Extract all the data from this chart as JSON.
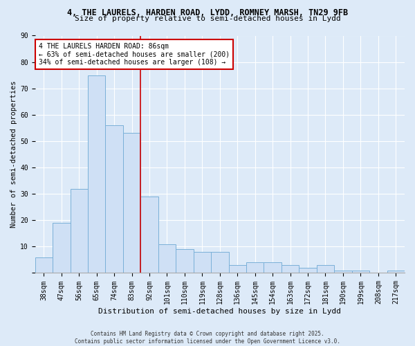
{
  "title_line1": "4, THE LAURELS, HARDEN ROAD, LYDD, ROMNEY MARSH, TN29 9FB",
  "title_line2": "Size of property relative to semi-detached houses in Lydd",
  "xlabel": "Distribution of semi-detached houses by size in Lydd",
  "ylabel": "Number of semi-detached properties",
  "categories": [
    "38sqm",
    "47sqm",
    "56sqm",
    "65sqm",
    "74sqm",
    "83sqm",
    "92sqm",
    "101sqm",
    "110sqm",
    "119sqm",
    "128sqm",
    "136sqm",
    "145sqm",
    "154sqm",
    "163sqm",
    "172sqm",
    "181sqm",
    "190sqm",
    "199sqm",
    "208sqm",
    "217sqm"
  ],
  "values": [
    6,
    19,
    32,
    75,
    56,
    53,
    29,
    11,
    9,
    8,
    8,
    3,
    4,
    4,
    3,
    2,
    3,
    1,
    1,
    0,
    1
  ],
  "bar_color": "#cfe0f5",
  "bar_edge_color": "#7ab0d8",
  "vline_x": 5.5,
  "vline_color": "#cc0000",
  "annotation_line1": "4 THE LAURELS HARDEN ROAD: 86sqm",
  "annotation_line2": "← 63% of semi-detached houses are smaller (200)",
  "annotation_line3": "34% of semi-detached houses are larger (108) →",
  "annotation_box_color": "#cc0000",
  "ylim": [
    0,
    90
  ],
  "yticks": [
    0,
    10,
    20,
    30,
    40,
    50,
    60,
    70,
    80,
    90
  ],
  "background_color": "#ddeaf8",
  "grid_color": "#ffffff",
  "footer": "Contains HM Land Registry data © Crown copyright and database right 2025.\nContains public sector information licensed under the Open Government Licence v3.0.",
  "title1_fontsize": 8.5,
  "title2_fontsize": 8.0,
  "ylabel_fontsize": 7.5,
  "xlabel_fontsize": 8.0,
  "tick_fontsize": 7.0,
  "annot_fontsize": 7.0,
  "footer_fontsize": 5.5
}
